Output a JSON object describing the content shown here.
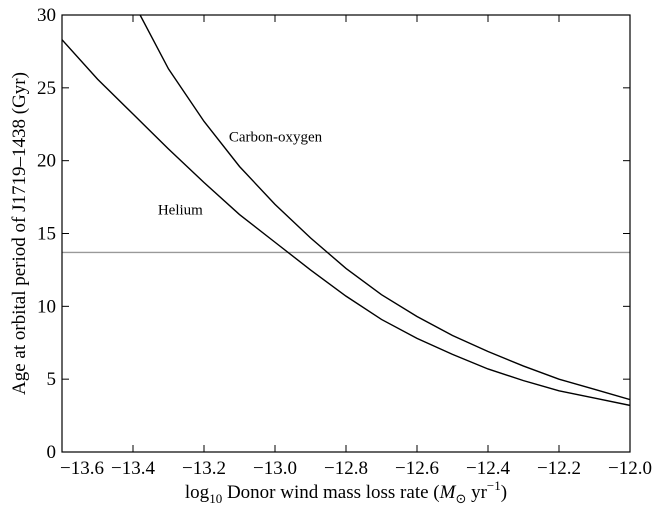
{
  "chart_data": {
    "type": "line",
    "xlabel": {
      "prefix": "log",
      "sub": "10",
      "main": " Donor wind mass loss rate (",
      "unit_m": "M",
      "unit_sun": "⊙",
      "unit_yr": " yr",
      "unit_exp": "−1",
      "close": ")"
    },
    "ylabel": "Age at orbital period of J1719–1438 (Gyr)",
    "xlim": [
      -13.6,
      -12.0
    ],
    "ylim": [
      0,
      30
    ],
    "xticks": [
      -13.6,
      -13.4,
      -13.2,
      -13.0,
      -12.8,
      -12.6,
      -12.4,
      -12.2,
      -12.0
    ],
    "xtick_labels": [
      "−13.6",
      "−13.4",
      "−13.2",
      "−13.0",
      "−12.8",
      "−12.6",
      "−12.4",
      "−12.2",
      "−12.0"
    ],
    "yticks": [
      0,
      5,
      10,
      15,
      20,
      25,
      30
    ],
    "ytick_labels": [
      "0",
      "5",
      "10",
      "15",
      "20",
      "25",
      "30"
    ],
    "grid": false,
    "legend": "none",
    "reference_line": {
      "y": 13.7,
      "color": "#999999"
    },
    "series": [
      {
        "name": "Helium",
        "color": "#000000",
        "x": [
          -13.6,
          -13.5,
          -13.4,
          -13.3,
          -13.2,
          -13.1,
          -13.0,
          -12.9,
          -12.8,
          -12.7,
          -12.6,
          -12.5,
          -12.4,
          -12.3,
          -12.2,
          -12.1,
          -12.0
        ],
        "y": [
          28.3,
          25.6,
          23.2,
          20.8,
          18.5,
          16.3,
          14.4,
          12.5,
          10.7,
          9.1,
          7.8,
          6.7,
          5.7,
          4.9,
          4.2,
          3.7,
          3.2
        ]
      },
      {
        "name": "Carbon-oxygen",
        "color": "#000000",
        "x": [
          -13.38,
          -13.3,
          -13.2,
          -13.1,
          -13.0,
          -12.9,
          -12.8,
          -12.7,
          -12.6,
          -12.5,
          -12.4,
          -12.3,
          -12.2,
          -12.1,
          -12.0
        ],
        "y": [
          30.0,
          26.3,
          22.7,
          19.6,
          17.0,
          14.7,
          12.6,
          10.8,
          9.3,
          8.0,
          6.9,
          5.9,
          5.0,
          4.3,
          3.6
        ]
      }
    ],
    "annotations": [
      {
        "text": "Carbon-oxygen",
        "x": -13.13,
        "y": 21.3
      },
      {
        "text": "Helium",
        "x": -13.33,
        "y": 16.3
      }
    ]
  }
}
